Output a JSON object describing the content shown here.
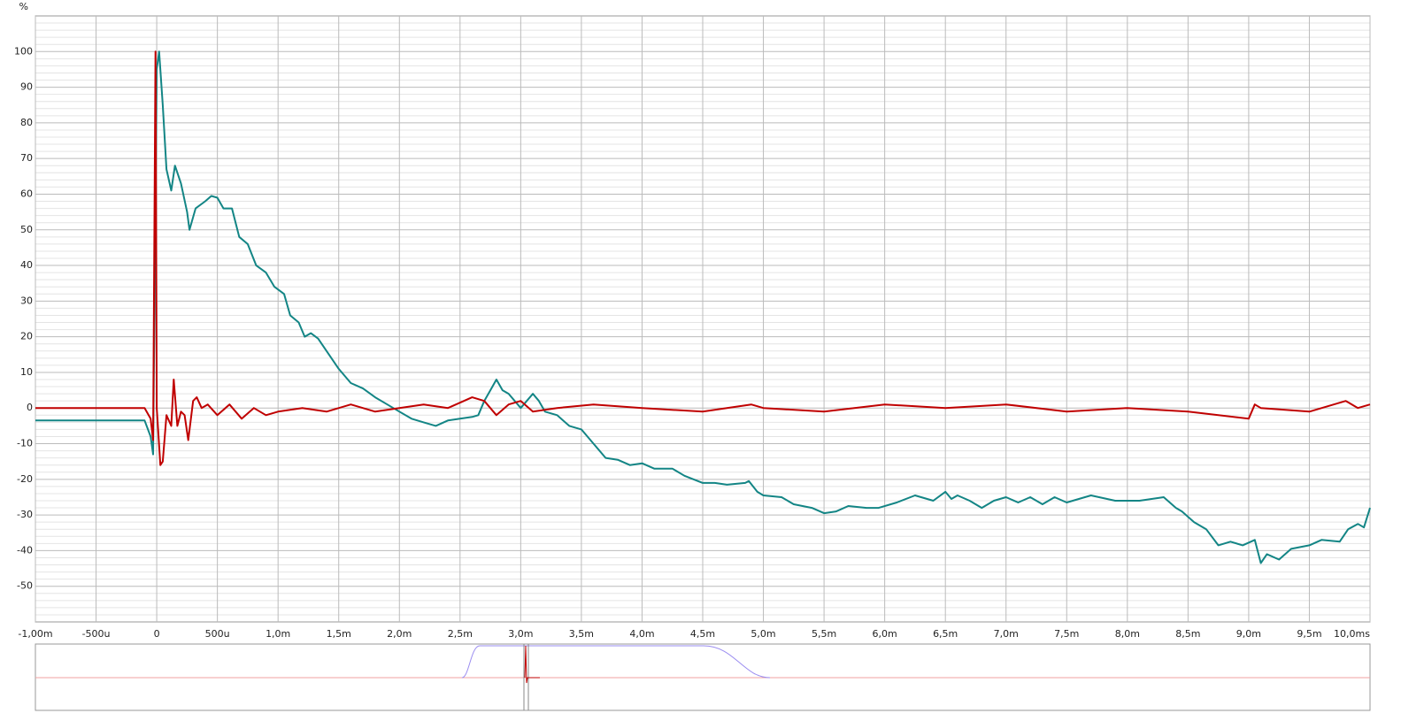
{
  "chart_data": {
    "type": "line",
    "ylabel": "%",
    "xlim": [
      -1,
      10
    ],
    "ylim": [
      -60,
      110
    ],
    "xticks": [
      {
        "value": -1,
        "label": "-1,00m"
      },
      {
        "value": -0.5,
        "label": "-500u"
      },
      0,
      {
        "value": 0.5,
        "label": "500u"
      },
      {
        "value": 1,
        "label": "1,0m"
      },
      {
        "value": 1.5,
        "label": "1,5m"
      },
      {
        "value": 2,
        "label": "2,0m"
      },
      {
        "value": 2.5,
        "label": "2,5m"
      },
      {
        "value": 3,
        "label": "3,0m"
      },
      {
        "value": 3.5,
        "label": "3,5m"
      },
      {
        "value": 4,
        "label": "4,0m"
      },
      {
        "value": 4.5,
        "label": "4,5m"
      },
      {
        "value": 5,
        "label": "5,0m"
      },
      {
        "value": 5.5,
        "label": "5,5m"
      },
      {
        "value": 6,
        "label": "6,0m"
      },
      {
        "value": 6.5,
        "label": "6,5m"
      },
      {
        "value": 7,
        "label": "7,0m"
      },
      {
        "value": 7.5,
        "label": "7,5m"
      },
      {
        "value": 8,
        "label": "8,0m"
      },
      {
        "value": 8.5,
        "label": "8,5m"
      },
      {
        "value": 9,
        "label": "9,0m"
      },
      {
        "value": 9.5,
        "label": "9,5m"
      },
      {
        "value": 10,
        "label": "10,0ms"
      }
    ],
    "yticks": [
      -50,
      -40,
      -30,
      -20,
      -10,
      0,
      10,
      20,
      30,
      40,
      50,
      60,
      70,
      80,
      90,
      100
    ],
    "yticks_minor": [
      -58,
      -56,
      -54,
      -52,
      -48,
      -46,
      -44,
      -42,
      -38,
      -36,
      -34,
      -32,
      -28,
      -26,
      -24,
      -22,
      -18,
      -16,
      -14,
      -12,
      -8,
      -6,
      -4,
      -2,
      2,
      4,
      6,
      8,
      12,
      14,
      16,
      18,
      22,
      24,
      26,
      28,
      32,
      34,
      36,
      38,
      42,
      44,
      46,
      48,
      52,
      54,
      56,
      58,
      62,
      64,
      66,
      68,
      72,
      74,
      76,
      78,
      82,
      84,
      86,
      88,
      92,
      94,
      96,
      98,
      102,
      104,
      106,
      108
    ],
    "grid": true,
    "series": [
      {
        "color": "#138585",
        "x": [
          -1,
          -0.1,
          -0.05,
          -0.03,
          0,
          0.02,
          0.05,
          0.08,
          0.12,
          0.15,
          0.2,
          0.25,
          0.27,
          0.32,
          0.4,
          0.45,
          0.5,
          0.55,
          0.62,
          0.68,
          0.75,
          0.82,
          0.9,
          0.97,
          1.05,
          1.1,
          1.17,
          1.22,
          1.27,
          1.33,
          1.4,
          1.5,
          1.6,
          1.7,
          1.8,
          1.9,
          2.0,
          2.1,
          2.2,
          2.3,
          2.4,
          2.5,
          2.6,
          2.65,
          2.7,
          2.75,
          2.8,
          2.85,
          2.9,
          3.0,
          3.05,
          3.1,
          3.15,
          3.2,
          3.3,
          3.4,
          3.5,
          3.6,
          3.7,
          3.8,
          3.9,
          4.0,
          4.1,
          4.25,
          4.35,
          4.5,
          4.6,
          4.7,
          4.85,
          4.88,
          4.95,
          5.0,
          5.15,
          5.25,
          5.4,
          5.5,
          5.6,
          5.7,
          5.85,
          5.95,
          6.1,
          6.25,
          6.4,
          6.5,
          6.55,
          6.6,
          6.7,
          6.8,
          6.9,
          7.0,
          7.1,
          7.2,
          7.3,
          7.4,
          7.5,
          7.7,
          7.9,
          8.1,
          8.3,
          8.4,
          8.45,
          8.55,
          8.65,
          8.75,
          8.85,
          8.95,
          9.05,
          9.1,
          9.15,
          9.25,
          9.35,
          9.5,
          9.6,
          9.75,
          9.82,
          9.9,
          9.95,
          10.0
        ],
        "values": [
          -3.5,
          -3.5,
          -8,
          -13,
          95,
          100,
          85,
          67,
          61,
          68,
          63,
          55,
          50,
          56,
          58,
          59.5,
          59,
          56,
          56,
          48,
          46,
          40,
          38,
          34,
          32,
          26,
          24,
          20,
          21,
          19.5,
          16,
          11,
          7,
          5.5,
          3,
          1,
          -1,
          -3,
          -4,
          -5,
          -3.5,
          -3,
          -2.5,
          -2,
          2,
          5,
          8,
          5,
          4,
          0,
          2,
          4,
          2,
          -1,
          -2,
          -5,
          -6,
          -10,
          -14,
          -14.5,
          -16,
          -15.5,
          -17,
          -17,
          -19,
          -21,
          -21,
          -21.5,
          -21,
          -20.5,
          -23.5,
          -24.5,
          -25,
          -27,
          -28,
          -29.5,
          -29,
          -27.5,
          -28,
          -28,
          -26.5,
          -24.5,
          -26,
          -23.5,
          -25.5,
          -24.5,
          -26,
          -28,
          -26,
          -25,
          -26.5,
          -25,
          -27,
          -25,
          -26.5,
          -24.5,
          -26,
          -26,
          -25,
          -28,
          -29,
          -32,
          -34,
          -38.5,
          -37.5,
          -38.5,
          -37,
          -43.5,
          -41,
          -42.5,
          -39.5,
          -38.5,
          -37,
          -37.5,
          -34,
          -32.5,
          -33.5,
          -28
        ]
      },
      {
        "color": "#c00000",
        "x": [
          -1,
          -0.1,
          -0.05,
          -0.03,
          -0.01,
          0,
          0.03,
          0.05,
          0.08,
          0.12,
          0.14,
          0.17,
          0.2,
          0.23,
          0.26,
          0.3,
          0.33,
          0.37,
          0.42,
          0.5,
          0.6,
          0.7,
          0.8,
          0.9,
          1.0,
          1.2,
          1.4,
          1.6,
          1.8,
          2.0,
          2.2,
          2.4,
          2.6,
          2.7,
          2.8,
          2.9,
          3.0,
          3.1,
          3.3,
          3.6,
          4.0,
          4.5,
          4.9,
          5.0,
          5.5,
          6.0,
          6.5,
          7.0,
          7.5,
          8.0,
          8.5,
          9.0,
          9.05,
          9.1,
          9.5,
          9.8,
          9.9,
          10.0
        ],
        "values": [
          0,
          0,
          -3,
          -9,
          100,
          0,
          -16,
          -15,
          -2,
          -5,
          8,
          -5,
          -1,
          -2,
          -9,
          2,
          3,
          0,
          1,
          -2,
          1,
          -3,
          0,
          -2,
          -1,
          0,
          -1,
          1,
          -1,
          0,
          1,
          0,
          3,
          2,
          -2,
          1,
          2,
          -1,
          0,
          1,
          0,
          -1,
          1,
          0,
          -1,
          1,
          0,
          1,
          -1,
          0,
          -1,
          -3,
          1,
          0,
          -1,
          2,
          0,
          1
        ]
      }
    ]
  }
}
